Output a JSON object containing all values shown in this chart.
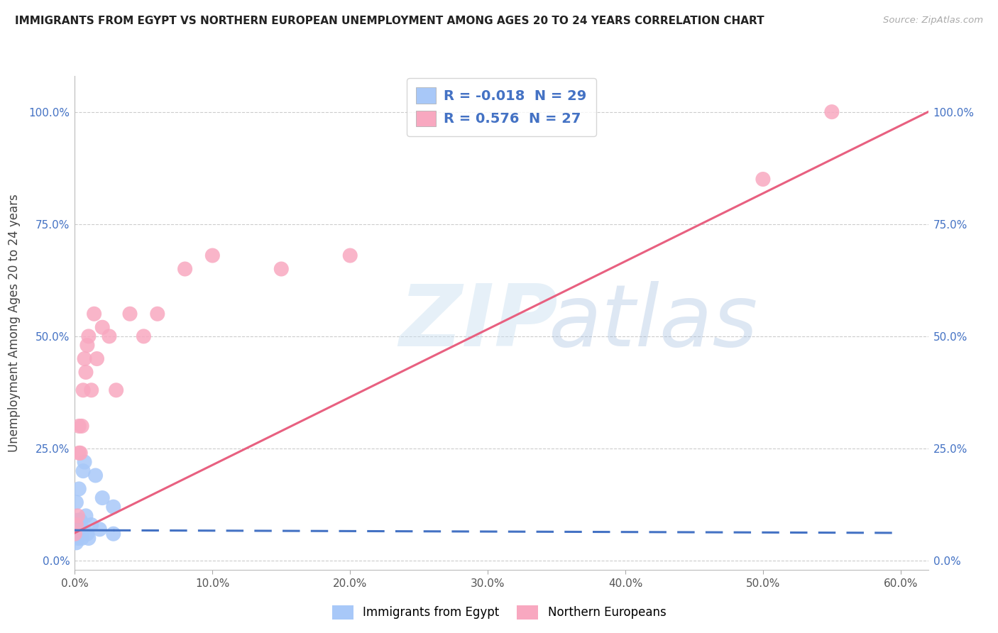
{
  "title": "IMMIGRANTS FROM EGYPT VS NORTHERN EUROPEAN UNEMPLOYMENT AMONG AGES 20 TO 24 YEARS CORRELATION CHART",
  "source": "Source: ZipAtlas.com",
  "ylabel": "Unemployment Among Ages 20 to 24 years",
  "R1": "-0.018",
  "N1": "29",
  "R2": "0.576",
  "N2": "27",
  "color_blue": "#A8C8F8",
  "color_pink": "#F8A8C0",
  "line_blue": "#4472C4",
  "line_pink": "#E86080",
  "background": "#FFFFFF",
  "grid_color": "#CCCCCC",
  "legend1_label": "Immigrants from Egypt",
  "legend2_label": "Northern Europeans",
  "xlim": [
    0.0,
    0.62
  ],
  "ylim": [
    -0.02,
    1.08
  ],
  "xtick_vals": [
    0.0,
    0.1,
    0.2,
    0.3,
    0.4,
    0.5,
    0.6
  ],
  "xtick_labels": [
    "0.0%",
    "10.0%",
    "20.0%",
    "30.0%",
    "40.0%",
    "50.0%",
    "60.0%"
  ],
  "ytick_vals": [
    0.0,
    0.25,
    0.5,
    0.75,
    1.0
  ],
  "ytick_labels": [
    "0.0%",
    "25.0%",
    "50.0%",
    "75.0%",
    "100.0%"
  ],
  "blue_x": [
    0.0,
    0.0,
    0.0,
    0.001,
    0.001,
    0.001,
    0.001,
    0.002,
    0.002,
    0.002,
    0.003,
    0.003,
    0.003,
    0.004,
    0.004,
    0.005,
    0.005,
    0.006,
    0.006,
    0.007,
    0.008,
    0.009,
    0.01,
    0.012,
    0.015,
    0.018,
    0.02,
    0.028,
    0.028
  ],
  "blue_y": [
    0.06,
    0.07,
    0.09,
    0.04,
    0.06,
    0.08,
    0.13,
    0.05,
    0.07,
    0.09,
    0.06,
    0.09,
    0.16,
    0.06,
    0.09,
    0.05,
    0.07,
    0.07,
    0.2,
    0.22,
    0.1,
    0.06,
    0.05,
    0.08,
    0.19,
    0.07,
    0.14,
    0.12,
    0.06
  ],
  "pink_x": [
    0.0,
    0.001,
    0.002,
    0.003,
    0.003,
    0.004,
    0.005,
    0.006,
    0.007,
    0.008,
    0.009,
    0.01,
    0.012,
    0.014,
    0.016,
    0.02,
    0.025,
    0.03,
    0.04,
    0.05,
    0.06,
    0.08,
    0.1,
    0.15,
    0.2,
    0.5,
    0.55
  ],
  "pink_y": [
    0.06,
    0.08,
    0.1,
    0.24,
    0.3,
    0.24,
    0.3,
    0.38,
    0.45,
    0.42,
    0.48,
    0.5,
    0.38,
    0.55,
    0.45,
    0.52,
    0.5,
    0.38,
    0.55,
    0.5,
    0.55,
    0.65,
    0.68,
    0.65,
    0.68,
    0.85,
    1.0
  ],
  "blue_line_x": [
    0.0,
    0.6
  ],
  "blue_line_y": [
    0.068,
    0.062
  ],
  "pink_line_x": [
    0.0,
    0.62
  ],
  "pink_line_y": [
    0.062,
    1.0
  ]
}
